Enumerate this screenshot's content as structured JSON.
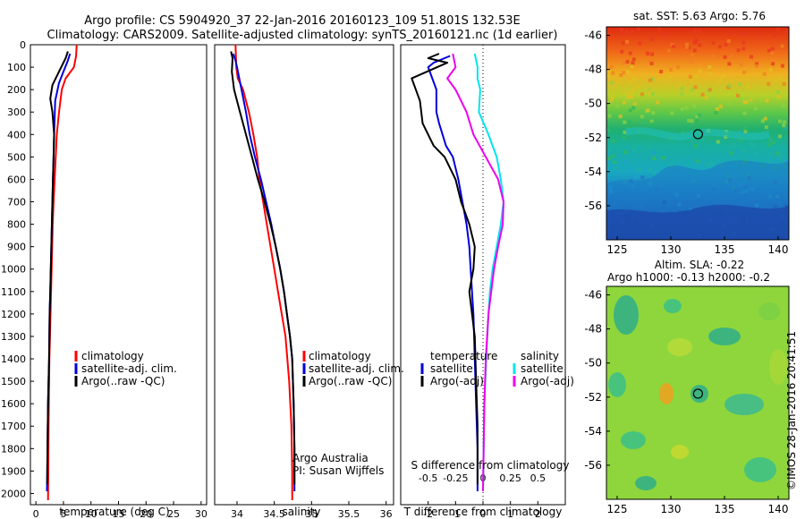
{
  "header": {
    "line1": "Argo profile: CS 5904920_37 22-Jan-2016 20160123_109 51.801S 132.53E",
    "line2": "Climatology: CARS2009. Satellite-adjusted climatology: synTS_20160121.nc (1d earlier)"
  },
  "colors": {
    "climatology": "#ff0000",
    "satellite": "#0000dd",
    "argo": "#000000",
    "sal_satellite": "#00e5ee",
    "sal_argo": "#ee00ee"
  },
  "credits": {
    "org": "Argo Australia",
    "pi": "PI: Susan Wijffels",
    "watermark": "©IMOS 28-Jan-2016 20:41:51"
  },
  "chart_data": [
    {
      "type": "line",
      "panel": "temperature",
      "xlabel": "temperature (deg C)",
      "ylabel": "",
      "xlim": [
        -1,
        31
      ],
      "ylim": [
        2050,
        0
      ],
      "xticks": [
        0,
        5,
        10,
        15,
        20,
        25,
        30
      ],
      "yticks": [
        0,
        100,
        200,
        300,
        400,
        500,
        600,
        700,
        800,
        900,
        1000,
        1100,
        1200,
        1300,
        1400,
        1500,
        1600,
        1700,
        1800,
        1900,
        2000
      ],
      "legend": [
        "climatology",
        "satellite-adj. clim.",
        "Argo(..raw -QC)"
      ],
      "series": [
        {
          "name": "climatology",
          "color": "#ff0000",
          "x": [
            7.4,
            7.3,
            6.9,
            5.4,
            4.7,
            4.2,
            3.8,
            3.6,
            3.4,
            3.2,
            3.05,
            2.95,
            2.85,
            2.75,
            2.65,
            2.55,
            2.45,
            2.4,
            2.35,
            2.3,
            2.25,
            2.2
          ],
          "y": [
            0,
            50,
            100,
            150,
            200,
            300,
            400,
            500,
            600,
            700,
            800,
            900,
            1000,
            1100,
            1200,
            1300,
            1400,
            1500,
            1600,
            1700,
            1900,
            2030
          ]
        },
        {
          "name": "satellite-adj. clim.",
          "color": "#0000dd",
          "x": [
            6.2,
            5.8,
            5.0,
            4.2,
            3.5,
            3.3,
            3.2,
            3.1,
            3.0,
            2.9,
            2.8,
            2.7,
            2.6,
            2.5,
            2.45,
            2.4,
            2.3,
            2.2,
            2.1,
            2.0
          ],
          "y": [
            40,
            70,
            120,
            170,
            250,
            400,
            500,
            600,
            700,
            800,
            900,
            1000,
            1100,
            1200,
            1300,
            1400,
            1500,
            1600,
            1800,
            1990
          ]
        },
        {
          "name": "Argo(..raw -QC)",
          "color": "#000000",
          "x": [
            5.8,
            5.4,
            4.4,
            3.0,
            2.6,
            3.0,
            3.3,
            3.2,
            3.1,
            3.0,
            2.9,
            2.8,
            2.7,
            2.6,
            2.5,
            2.45,
            2.4,
            2.3,
            2.2,
            2.1,
            2.05
          ],
          "y": [
            30,
            60,
            110,
            180,
            240,
            300,
            400,
            500,
            600,
            700,
            800,
            900,
            1000,
            1100,
            1200,
            1300,
            1400,
            1500,
            1600,
            1800,
            1960
          ]
        }
      ]
    },
    {
      "type": "line",
      "panel": "salinity",
      "xlabel": "salinity",
      "xlim": [
        33.7,
        36.1
      ],
      "ylim": [
        2050,
        0
      ],
      "xticks": [
        34,
        34.5,
        35,
        35.5,
        36
      ],
      "legend": [
        "climatology",
        "satellite-adj. clim.",
        "Argo(..raw -QC)"
      ],
      "series": [
        {
          "name": "climatology",
          "color": "#ff0000",
          "x": [
            33.98,
            33.99,
            34.01,
            34.08,
            34.16,
            34.22,
            34.27,
            34.3,
            34.35,
            34.4,
            34.45,
            34.5,
            34.55,
            34.6,
            34.65,
            34.7,
            34.73,
            34.74,
            34.74
          ],
          "y": [
            0,
            100,
            150,
            200,
            300,
            400,
            500,
            600,
            700,
            800,
            900,
            1000,
            1100,
            1200,
            1300,
            1500,
            1700,
            1900,
            2030
          ]
        },
        {
          "name": "satellite-adj. clim.",
          "color": "#0000dd",
          "x": [
            33.95,
            33.98,
            34.0,
            34.06,
            34.12,
            34.17,
            34.24,
            34.32,
            34.39,
            34.46,
            34.52,
            34.58,
            34.63,
            34.67,
            34.71,
            34.74,
            34.76,
            34.77,
            34.77
          ],
          "y": [
            40,
            70,
            100,
            200,
            300,
            400,
            500,
            600,
            700,
            800,
            900,
            1000,
            1100,
            1200,
            1300,
            1400,
            1600,
            1800,
            1990
          ]
        },
        {
          "name": "Argo(..raw -QC)",
          "color": "#000000",
          "x": [
            33.92,
            33.94,
            33.93,
            33.96,
            34.04,
            34.12,
            34.2,
            34.28,
            34.37,
            34.45,
            34.52,
            34.58,
            34.63,
            34.67,
            34.71,
            34.74,
            34.76,
            34.77,
            34.77
          ],
          "y": [
            30,
            60,
            120,
            200,
            300,
            400,
            500,
            600,
            700,
            800,
            900,
            1000,
            1100,
            1200,
            1300,
            1400,
            1600,
            1800,
            1960
          ]
        }
      ]
    },
    {
      "type": "line",
      "panel": "difference",
      "xlabel": "T difference from climatology",
      "xlabel_top": "S difference from climatology",
      "xlim": [
        -3,
        3
      ],
      "ylim": [
        2050,
        0
      ],
      "xticks": [
        -2,
        -1,
        0,
        1,
        2
      ],
      "xticks_s": [
        "-0.5",
        "-0.25",
        "0",
        "0.25",
        "0.5"
      ],
      "legend_t_title": "temperature",
      "legend_t": [
        "satellite",
        "Argo(-adj)"
      ],
      "legend_s_title": "salinity",
      "legend_s": [
        "satellite",
        "Argo(-adj)"
      ],
      "series": [
        {
          "name": "T satellite",
          "color": "#0000dd",
          "x": [
            -1.2,
            -1.8,
            -2.0,
            -1.7,
            -1.7,
            -1.6,
            -1.35,
            -1.1,
            -0.9,
            -0.75,
            -0.6,
            -0.5,
            -0.45,
            -0.4,
            -0.35,
            -0.3,
            -0.25,
            -0.2,
            -0.2
          ],
          "y": [
            50,
            80,
            100,
            200,
            300,
            350,
            450,
            500,
            600,
            700,
            800,
            900,
            1000,
            1100,
            1200,
            1400,
            1600,
            1800,
            1990
          ]
        },
        {
          "name": "T Argo(-adj)",
          "color": "#000000",
          "x": [
            -1.6,
            -2.0,
            -1.3,
            -2.6,
            -2.3,
            -2.2,
            -1.8,
            -1.4,
            -1.0,
            -0.8,
            -0.5,
            -0.3,
            -0.35,
            -0.5,
            -0.3,
            -0.25,
            -0.2,
            -0.2
          ],
          "y": [
            40,
            60,
            80,
            150,
            250,
            350,
            450,
            500,
            600,
            700,
            800,
            900,
            1000,
            1100,
            1300,
            1500,
            1700,
            1960
          ]
        },
        {
          "name": "S satellite",
          "color": "#00e5ee",
          "x": [
            -0.3,
            -0.2,
            -0.2,
            -0.1,
            -0.15,
            0.2,
            0.5,
            0.65,
            0.75,
            0.65,
            0.5,
            0.35,
            0.25,
            0.2,
            0.12,
            0.05,
            0.0
          ],
          "y": [
            40,
            100,
            150,
            200,
            300,
            400,
            500,
            600,
            700,
            800,
            900,
            1000,
            1100,
            1200,
            1400,
            1600,
            1990
          ]
        },
        {
          "name": "S Argo(-adj)",
          "color": "#ee00ee",
          "x": [
            -1.1,
            -1.0,
            -1.3,
            -1.0,
            -0.6,
            -0.35,
            0.1,
            0.55,
            0.75,
            0.72,
            0.55,
            0.4,
            0.3,
            0.2,
            0.1,
            0.05,
            0.0
          ],
          "y": [
            40,
            100,
            150,
            200,
            300,
            400,
            500,
            600,
            700,
            800,
            900,
            1000,
            1100,
            1200,
            1400,
            1600,
            1990
          ]
        }
      ]
    },
    {
      "type": "heatmap",
      "panel": "sst_map",
      "title": "sat. SST: 5.63 Argo: 5.76",
      "xlim": [
        124,
        141
      ],
      "ylim": [
        -58,
        -45.5
      ],
      "xticks": [
        "125",
        "130",
        "135",
        "140"
      ],
      "yticks": [
        "-46",
        "-48",
        "-50",
        "-52",
        "-54",
        "-56"
      ],
      "marker": {
        "lon": 132.53,
        "lat": -51.8
      }
    },
    {
      "type": "heatmap",
      "panel": "sla_map",
      "title": "Altim. SLA: -0.22",
      "subtitle": "Argo h1000: -0.13 h2000: -0.2",
      "xlim": [
        124,
        141
      ],
      "ylim": [
        -58,
        -45.5
      ],
      "xticks": [
        "125",
        "130",
        "135",
        "140"
      ],
      "yticks": [
        "-46",
        "-48",
        "-50",
        "-52",
        "-54",
        "-56"
      ],
      "marker": {
        "lon": 132.53,
        "lat": -51.8
      }
    }
  ]
}
